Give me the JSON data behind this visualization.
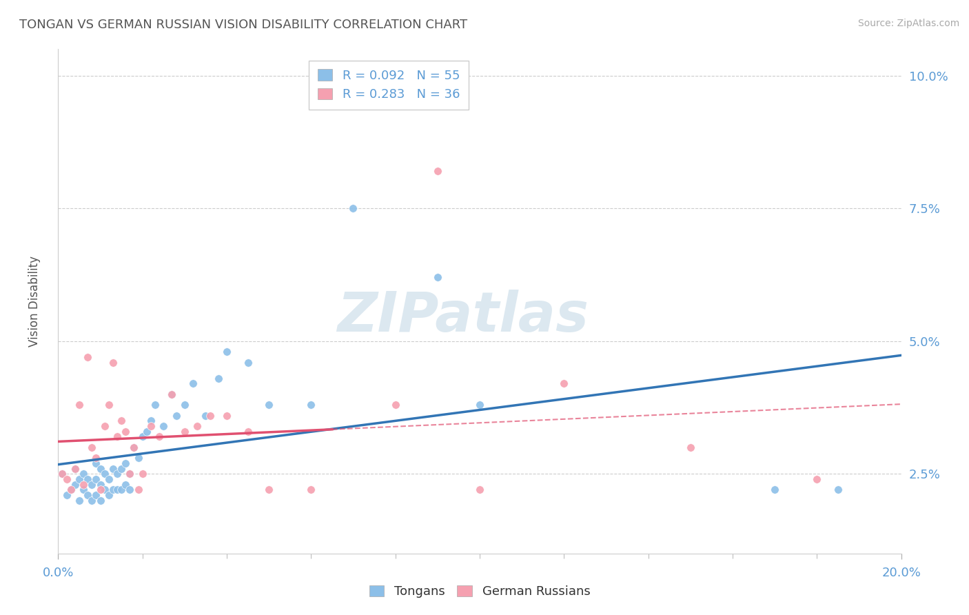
{
  "title": "TONGAN VS GERMAN RUSSIAN VISION DISABILITY CORRELATION CHART",
  "source": "Source: ZipAtlas.com",
  "ylabel": "Vision Disability",
  "xlim": [
    0.0,
    0.2
  ],
  "ylim": [
    0.01,
    0.105
  ],
  "ytick_labels": [
    "2.5%",
    "5.0%",
    "7.5%",
    "10.0%"
  ],
  "ytick_values": [
    0.025,
    0.05,
    0.075,
    0.1
  ],
  "legend_r_tongan": "R = 0.092",
  "legend_n_tongan": "N = 55",
  "legend_r_german": "R = 0.283",
  "legend_n_german": "N = 36",
  "tongan_color": "#8cbfe8",
  "german_color": "#f5a0b0",
  "tongan_line_color": "#3275b5",
  "german_line_color": "#e05070",
  "background_color": "#ffffff",
  "grid_color": "#cccccc",
  "axis_label_color": "#5b9bd5",
  "title_color": "#555555",
  "watermark_color": "#dce8f0",
  "tongan_scatter_x": [
    0.001,
    0.002,
    0.003,
    0.004,
    0.004,
    0.005,
    0.005,
    0.006,
    0.006,
    0.007,
    0.007,
    0.008,
    0.008,
    0.009,
    0.009,
    0.009,
    0.01,
    0.01,
    0.01,
    0.011,
    0.011,
    0.012,
    0.012,
    0.013,
    0.013,
    0.014,
    0.014,
    0.015,
    0.015,
    0.016,
    0.016,
    0.017,
    0.017,
    0.018,
    0.019,
    0.02,
    0.021,
    0.022,
    0.023,
    0.025,
    0.027,
    0.028,
    0.03,
    0.032,
    0.035,
    0.038,
    0.04,
    0.045,
    0.05,
    0.06,
    0.07,
    0.09,
    0.1,
    0.17,
    0.185
  ],
  "tongan_scatter_y": [
    0.025,
    0.021,
    0.022,
    0.023,
    0.026,
    0.02,
    0.024,
    0.022,
    0.025,
    0.021,
    0.024,
    0.02,
    0.023,
    0.021,
    0.024,
    0.027,
    0.02,
    0.023,
    0.026,
    0.022,
    0.025,
    0.021,
    0.024,
    0.022,
    0.026,
    0.022,
    0.025,
    0.022,
    0.026,
    0.023,
    0.027,
    0.022,
    0.025,
    0.03,
    0.028,
    0.032,
    0.033,
    0.035,
    0.038,
    0.034,
    0.04,
    0.036,
    0.038,
    0.042,
    0.036,
    0.043,
    0.048,
    0.046,
    0.038,
    0.038,
    0.075,
    0.062,
    0.038,
    0.022,
    0.022
  ],
  "german_scatter_x": [
    0.001,
    0.002,
    0.003,
    0.004,
    0.005,
    0.006,
    0.007,
    0.008,
    0.009,
    0.01,
    0.011,
    0.012,
    0.013,
    0.014,
    0.015,
    0.016,
    0.017,
    0.018,
    0.019,
    0.02,
    0.022,
    0.024,
    0.027,
    0.03,
    0.033,
    0.036,
    0.04,
    0.045,
    0.05,
    0.06,
    0.08,
    0.09,
    0.1,
    0.12,
    0.15,
    0.18
  ],
  "german_scatter_y": [
    0.025,
    0.024,
    0.022,
    0.026,
    0.038,
    0.023,
    0.047,
    0.03,
    0.028,
    0.022,
    0.034,
    0.038,
    0.046,
    0.032,
    0.035,
    0.033,
    0.025,
    0.03,
    0.022,
    0.025,
    0.034,
    0.032,
    0.04,
    0.033,
    0.034,
    0.036,
    0.036,
    0.033,
    0.022,
    0.022,
    0.038,
    0.082,
    0.022,
    0.042,
    0.03,
    0.024
  ]
}
